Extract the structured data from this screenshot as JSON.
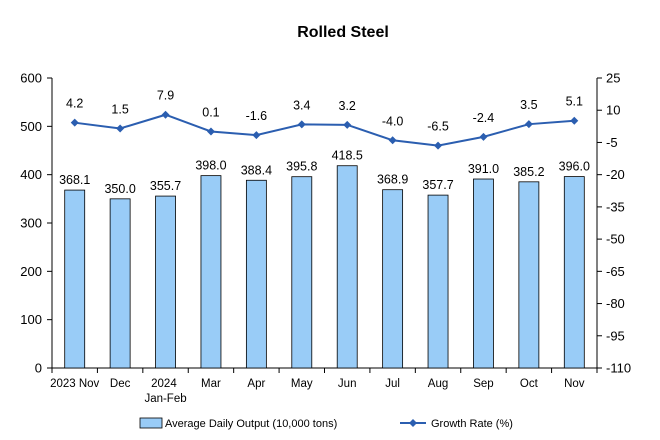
{
  "chart_data": {
    "type": "bar",
    "title": "Rolled Steel",
    "categories": [
      "2023 Nov",
      "Dec",
      "2024 Jan-Feb",
      "Mar",
      "Apr",
      "May",
      "Jun",
      "Jul",
      "Aug",
      "Sep",
      "Oct",
      "Nov"
    ],
    "series": [
      {
        "name": "Average Daily Output (10,000 tons)",
        "type": "bar",
        "axis": "left",
        "color": "#99ccf7",
        "values": [
          368.1,
          350.0,
          355.7,
          398.0,
          388.4,
          395.8,
          418.5,
          368.9,
          357.7,
          391.0,
          385.2,
          396.0
        ]
      },
      {
        "name": "Growth Rate (%)",
        "type": "line",
        "axis": "right",
        "color": "#2b5eb0",
        "values": [
          4.2,
          1.5,
          7.9,
          0.1,
          -1.6,
          3.4,
          3.2,
          -4.0,
          -6.5,
          -2.4,
          3.5,
          5.1
        ]
      }
    ],
    "y_left": {
      "min": 0,
      "max": 600,
      "ticks": [
        0,
        100,
        200,
        300,
        400,
        500,
        600
      ]
    },
    "y_right": {
      "min": -110,
      "max": 25,
      "ticks": [
        25,
        10,
        -5,
        -20,
        -35,
        -50,
        -65,
        -80,
        -95,
        -110
      ]
    },
    "grid": false,
    "legend": "bottom"
  }
}
